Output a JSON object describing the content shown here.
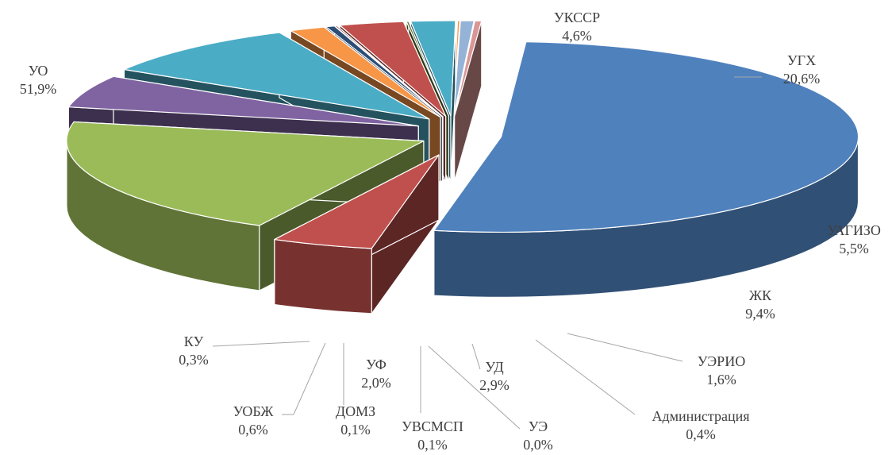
{
  "chart_data": {
    "type": "pie",
    "style": "3d-exploded",
    "title": "",
    "series": [
      {
        "name": "",
        "categories": [
          "УО",
          "УКССР",
          "УГХ",
          "УАГИЗО",
          "ЖК",
          "УЭРИО",
          "Администрация",
          "УЭ",
          "УД",
          "УВСМСП",
          "УФ",
          "ДОМЗ",
          "УОБЖ",
          "КУ"
        ]
      }
    ],
    "slices": [
      {
        "label": "УО",
        "value": 51.9,
        "value_text": "51,9%",
        "color": "#4f81bd"
      },
      {
        "label": "УКССР",
        "value": 4.6,
        "value_text": "4,6%",
        "color": "#c0504d"
      },
      {
        "label": "УГХ",
        "value": 20.6,
        "value_text": "20,6%",
        "color": "#9bbb59"
      },
      {
        "label": "УАГИЗО",
        "value": 5.5,
        "value_text": "5,5%",
        "color": "#8064a2"
      },
      {
        "label": "ЖК",
        "value": 9.4,
        "value_text": "9,4%",
        "color": "#4bacc6"
      },
      {
        "label": "УЭРИО",
        "value": 1.6,
        "value_text": "1,6%",
        "color": "#f79646"
      },
      {
        "label": "Администрация",
        "value": 0.4,
        "value_text": "0,4%",
        "color": "#2c4d75"
      },
      {
        "label": "УЭ",
        "value": 0.0,
        "value_text": "0,0%",
        "color": "#772c2a"
      },
      {
        "label": "УД",
        "value": 2.9,
        "value_text": "2,9%",
        "color": "#c0504d"
      },
      {
        "label": "УВСМСП",
        "value": 0.1,
        "value_text": "0,1%",
        "color": "#5f7530"
      },
      {
        "label": "УФ",
        "value": 2.0,
        "value_text": "2,0%",
        "color": "#4bacc6"
      },
      {
        "label": "ДОМЗ",
        "value": 0.1,
        "value_text": "0,1%",
        "color": "#f79646"
      },
      {
        "label": "УОБЖ",
        "value": 0.6,
        "value_text": "0,6%",
        "color": "#95b3d7"
      },
      {
        "label": "КУ",
        "value": 0.3,
        "value_text": "0,3%",
        "color": "#d99694"
      }
    ],
    "legend": "none",
    "data_labels": "outside with leader lines"
  }
}
